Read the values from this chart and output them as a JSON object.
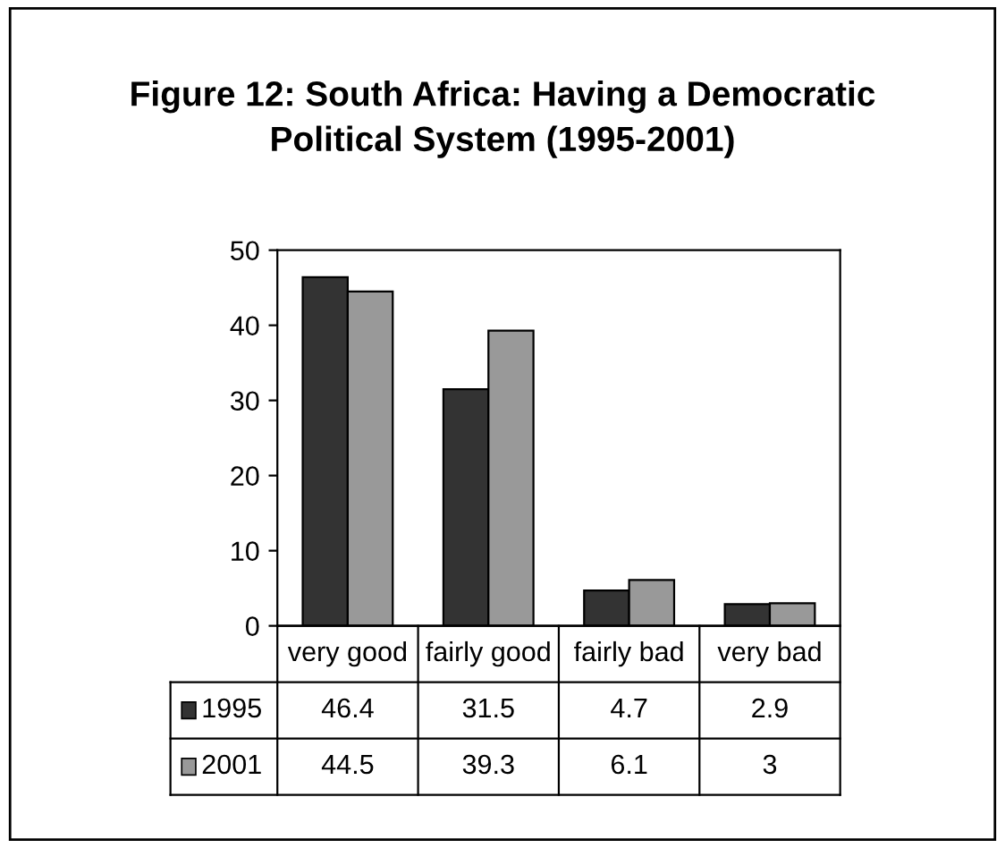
{
  "chart_data": {
    "type": "bar",
    "title": "Figure 12: South Africa: Having a Democratic\nPolitical System (1995-2001)",
    "categories": [
      "very good",
      "fairly good",
      "fairly bad",
      "very bad"
    ],
    "series": [
      {
        "name": "1995",
        "color": "#333333",
        "values": [
          46.4,
          31.5,
          4.7,
          2.9
        ]
      },
      {
        "name": "2001",
        "color": "#999999",
        "values": [
          44.5,
          39.3,
          6.1,
          3
        ]
      }
    ],
    "ylim": [
      0,
      50
    ],
    "yticks": [
      0,
      10,
      20,
      30,
      40,
      50
    ],
    "grid": false,
    "legend": "bottom left",
    "data_labels": true
  }
}
